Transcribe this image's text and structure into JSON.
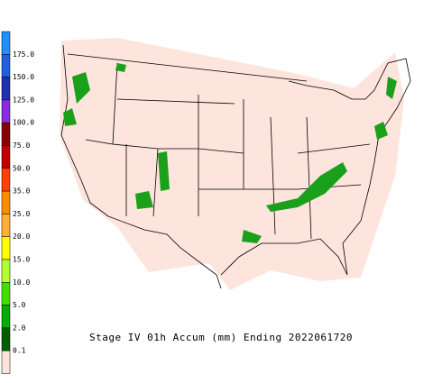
{
  "title": "Stage IV 01h Accum (mm) Ending 2022061720",
  "legend": {
    "labels": [
      "175.0",
      "150.0",
      "125.0",
      "100.0",
      "75.0",
      "50.0",
      "35.0",
      "25.0",
      "20.0",
      "15.0",
      "10.0",
      "5.0",
      "2.0",
      "0.1"
    ],
    "colors": [
      "#1e90ff",
      "#2060e0",
      "#2030b0",
      "#8a2be2",
      "#8b0000",
      "#c00000",
      "#ff4000",
      "#ff8c00",
      "#ffb030",
      "#ffff00",
      "#b0ff30",
      "#40e000",
      "#00b000",
      "#006000",
      "#fde4dc"
    ]
  }
}
